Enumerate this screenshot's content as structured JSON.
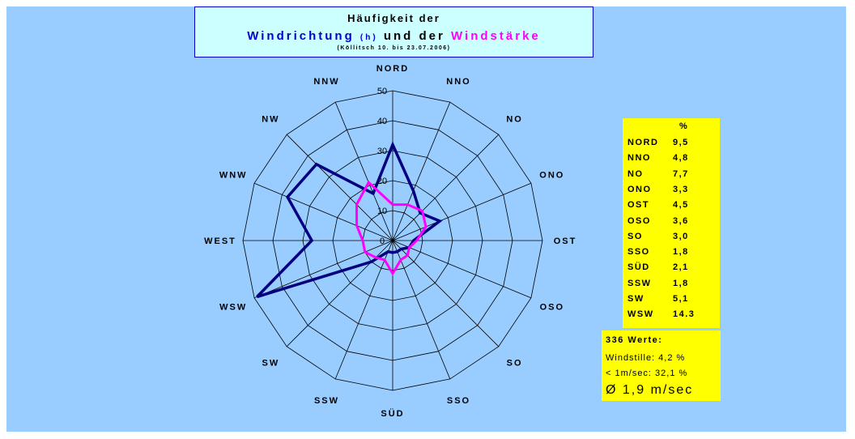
{
  "title": {
    "line1": "Häufigkeit der",
    "line2_part1": "Windrichtung",
    "line2_small": "(h)",
    "line2_part2": "und der",
    "line2_part3": "Windstärke",
    "line3": "(Köllitsch 10. bis 23.07.2006)"
  },
  "chart_data": {
    "type": "radar",
    "categories": [
      "NORD",
      "NNO",
      "NO",
      "ONO",
      "OST",
      "OSO",
      "SO",
      "SSO",
      "SÜD",
      "SSW",
      "SW",
      "WSW",
      "WEST",
      "WNW",
      "NW",
      "NNW"
    ],
    "rlim": [
      0,
      50
    ],
    "rticks": [
      "0",
      "10",
      "20",
      "30",
      "40",
      "50"
    ],
    "grid": true,
    "series": [
      {
        "values": [
          32,
          18,
          13,
          17,
          7,
          6,
          4,
          4,
          4,
          4,
          10,
          49,
          27,
          38,
          36,
          17
        ],
        "color": "#000080"
      },
      {
        "values": [
          12,
          13,
          14,
          12,
          8,
          6,
          7,
          7,
          11,
          7,
          8,
          10,
          10,
          13,
          17,
          21
        ],
        "color": "#ff00ff"
      }
    ]
  },
  "percent_table": {
    "header": "%",
    "rows": [
      {
        "label": "NORD",
        "value": "9,5"
      },
      {
        "label": "NNO",
        "value": "4,8"
      },
      {
        "label": "NO",
        "value": "7,7"
      },
      {
        "label": "ONO",
        "value": "3,3"
      },
      {
        "label": "OST",
        "value": "4,5"
      },
      {
        "label": "OSO",
        "value": "3,6"
      },
      {
        "label": "SO",
        "value": "3,0"
      },
      {
        "label": "SSO",
        "value": "1,8"
      },
      {
        "label": "SÜD",
        "value": "2,1"
      },
      {
        "label": "SSW",
        "value": "1,8"
      },
      {
        "label": "SW",
        "value": "5,1"
      },
      {
        "label": "WSW",
        "value": "14.3"
      }
    ]
  },
  "info": {
    "title": "336 Werte:",
    "line1": "Windstille: 4,2 %",
    "line2": "< 1m/sec: 32,1 %",
    "big": "Ø 1,9 m/sec"
  },
  "colors": {
    "background": "#99ccff",
    "title_box": "#ccffff",
    "direction": "#000080",
    "speed": "#ff00ff",
    "boxes": "#ffff00"
  }
}
